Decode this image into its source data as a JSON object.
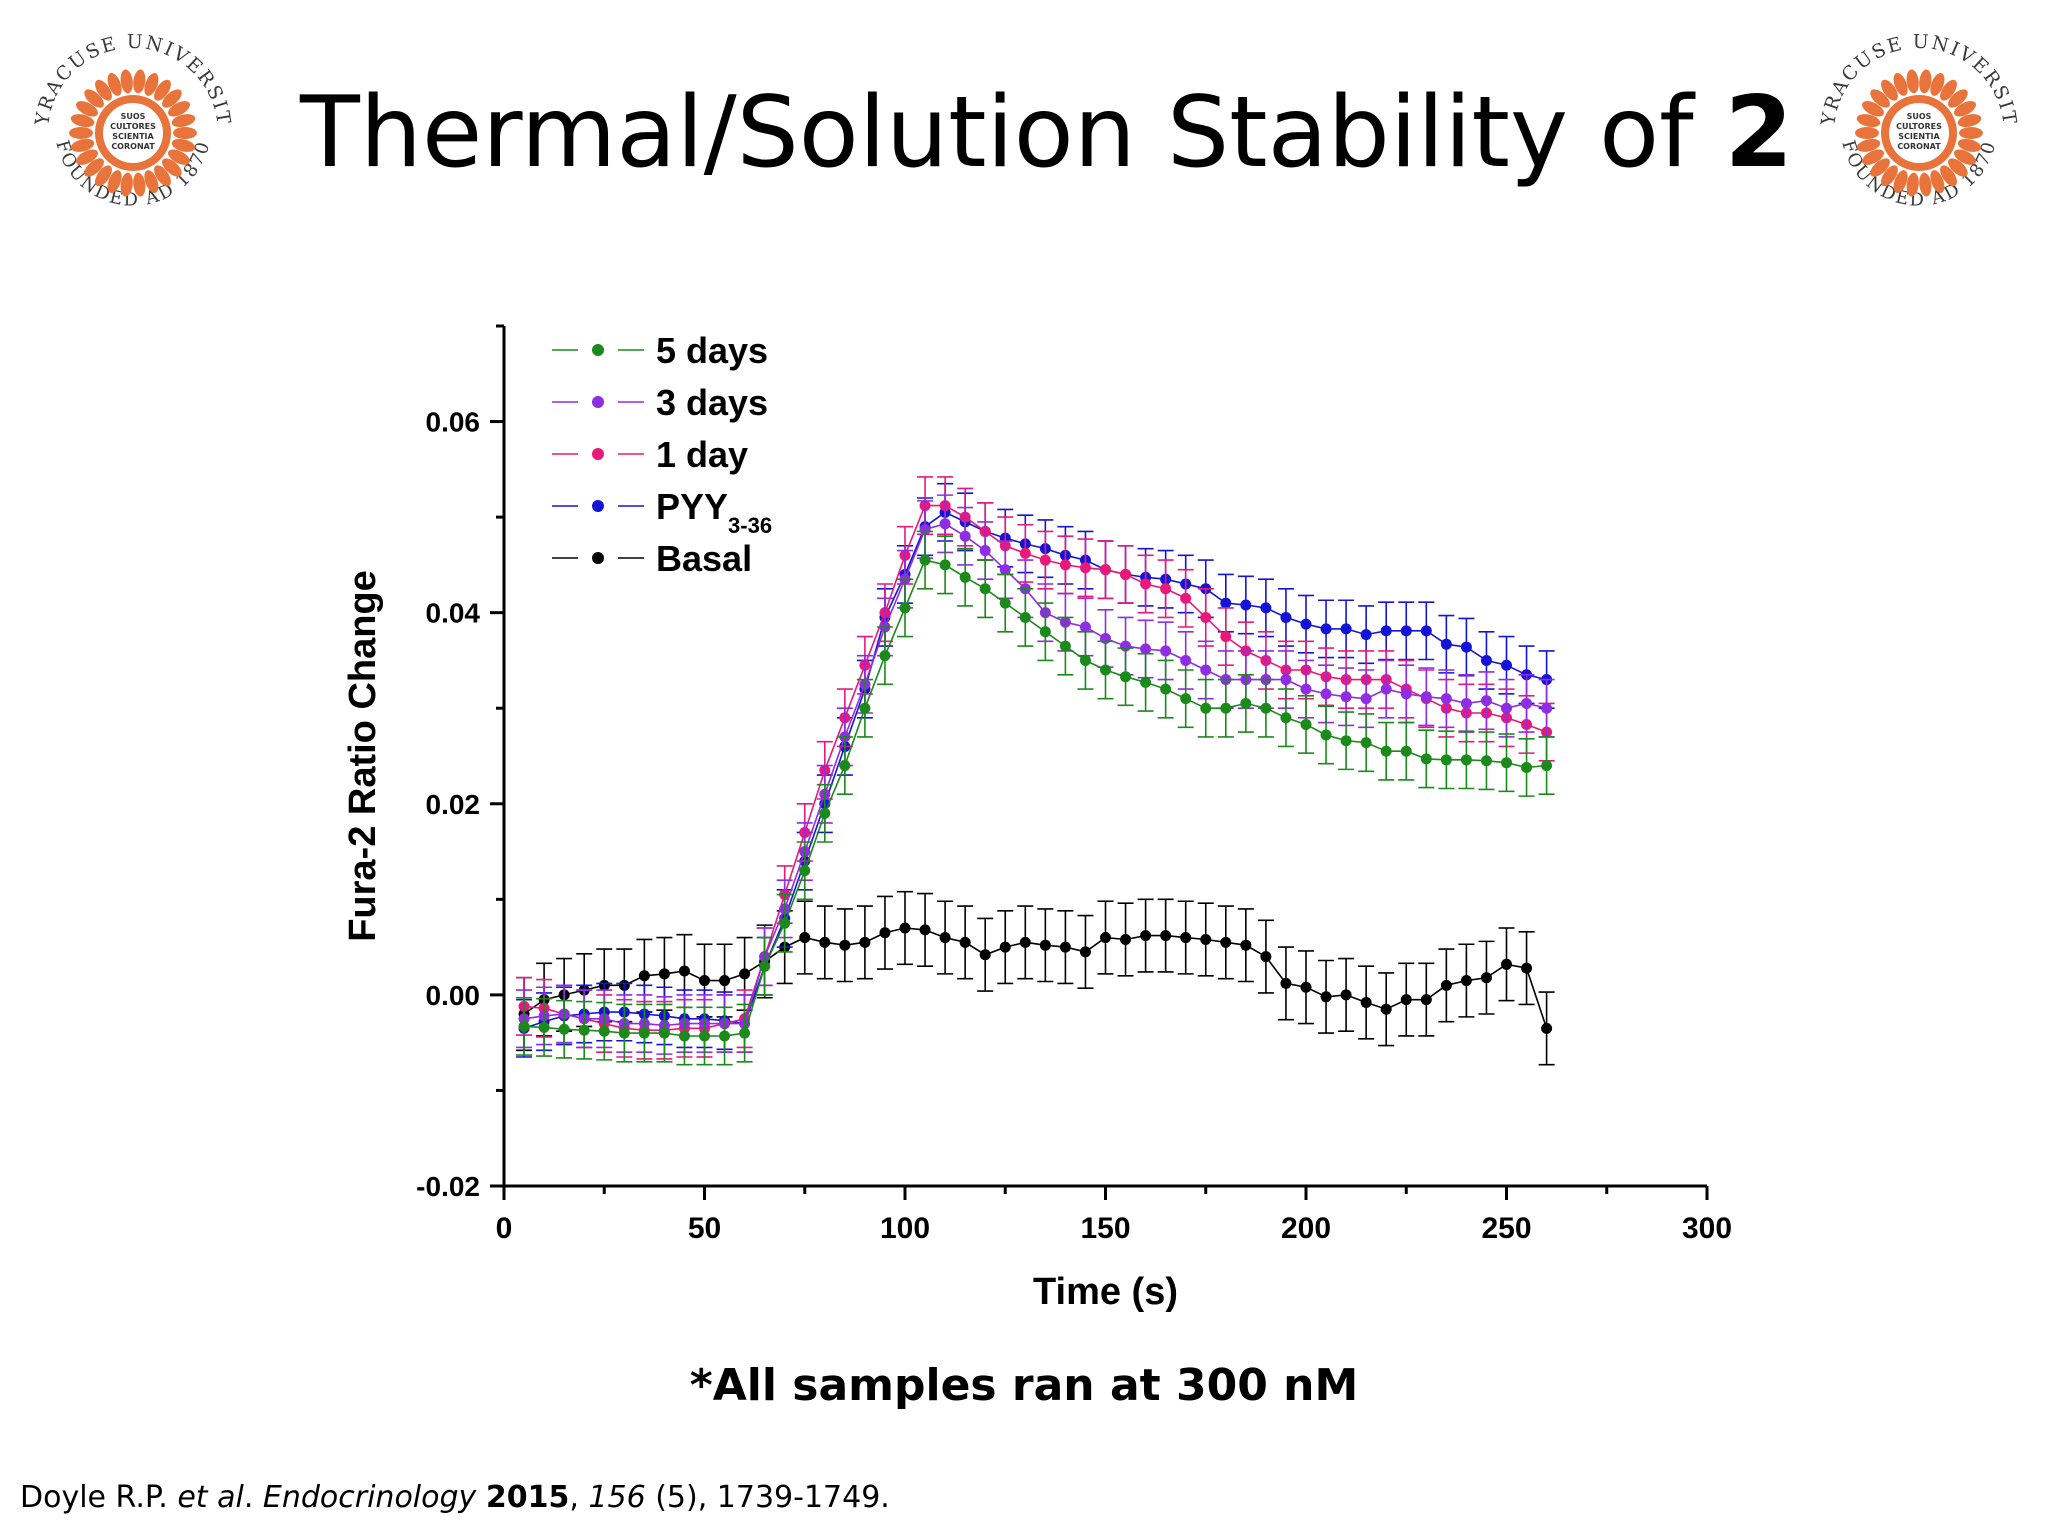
{
  "slide": {
    "title_text": "Thermal/Solution Stability of ",
    "title_bold": "2",
    "seal": {
      "top_text": "SYRACUSE UNIVERSITY",
      "bottom_text": "FOUNDED AD 1870",
      "motto": [
        "SUOS",
        "CULTORES",
        "SCIENTIA",
        "CORONAT"
      ],
      "color": "#e8743b"
    },
    "note": "*All samples ran at 300 nM",
    "citation": {
      "author": "Doyle R.P. ",
      "etal": "et al",
      "dot": ". ",
      "journal": "Endocrinology",
      "year": "2015",
      "sep": ", ",
      "volume": "156",
      "rest": " (5), 1739-1749."
    }
  },
  "chart_data": {
    "type": "line",
    "xlabel": "Time (s)",
    "ylabel": "Fura-2 Ratio Change",
    "xlim": [
      0,
      300
    ],
    "ylim": [
      -0.02,
      0.07
    ],
    "xticks": [
      0,
      50,
      100,
      150,
      200,
      250,
      300
    ],
    "yticks": [
      -0.02,
      0.0,
      0.02,
      0.04,
      0.06
    ],
    "x": [
      5,
      10,
      15,
      20,
      25,
      30,
      35,
      40,
      45,
      50,
      55,
      60,
      65,
      70,
      75,
      80,
      85,
      90,
      95,
      100,
      105,
      110,
      115,
      120,
      125,
      130,
      135,
      140,
      145,
      150,
      155,
      160,
      165,
      170,
      175,
      180,
      185,
      190,
      195,
      200,
      205,
      210,
      215,
      220,
      225,
      230,
      235,
      240,
      245,
      250,
      255,
      260
    ],
    "series": [
      {
        "name": "5 days",
        "color": "#1b8a1b",
        "values": [
          -0.0033,
          -0.0034,
          -0.0036,
          -0.0037,
          -0.0038,
          -0.004,
          -0.004,
          -0.004,
          -0.0043,
          -0.0043,
          -0.0043,
          -0.004,
          0.003,
          0.0075,
          0.013,
          0.019,
          0.024,
          0.03,
          0.0355,
          0.0405,
          0.0455,
          0.045,
          0.0437,
          0.0425,
          0.041,
          0.0395,
          0.038,
          0.0365,
          0.035,
          0.034,
          0.0333,
          0.0327,
          0.032,
          0.031,
          0.03,
          0.03,
          0.0305,
          0.03,
          0.029,
          0.0283,
          0.0272,
          0.0266,
          0.0264,
          0.0255,
          0.0255,
          0.0247,
          0.0246,
          0.0246,
          0.0245,
          0.0243,
          0.0238,
          0.024
        ],
        "err": 0.003
      },
      {
        "name": "3 days",
        "color": "#8e2de2",
        "values": [
          -0.0025,
          -0.0022,
          -0.002,
          -0.0025,
          -0.0025,
          -0.003,
          -0.003,
          -0.0032,
          -0.003,
          -0.003,
          -0.003,
          -0.003,
          0.004,
          0.009,
          0.015,
          0.021,
          0.027,
          0.0325,
          0.0385,
          0.0435,
          0.0487,
          0.0493,
          0.048,
          0.0465,
          0.0445,
          0.0425,
          0.04,
          0.039,
          0.0385,
          0.0373,
          0.0365,
          0.0362,
          0.036,
          0.035,
          0.034,
          0.033,
          0.033,
          0.033,
          0.033,
          0.032,
          0.0315,
          0.0312,
          0.031,
          0.032,
          0.0315,
          0.0312,
          0.031,
          0.0305,
          0.0308,
          0.03,
          0.0305,
          0.03
        ],
        "err": 0.003
      },
      {
        "name": "1 day",
        "color": "#e8197a",
        "values": [
          -0.0012,
          -0.0014,
          -0.002,
          -0.0025,
          -0.003,
          -0.0035,
          -0.0037,
          -0.0037,
          -0.0035,
          -0.0035,
          -0.003,
          -0.0025,
          0.004,
          0.0105,
          0.017,
          0.0235,
          0.029,
          0.0345,
          0.04,
          0.046,
          0.0512,
          0.0512,
          0.05,
          0.0485,
          0.047,
          0.0462,
          0.0455,
          0.045,
          0.0447,
          0.0445,
          0.044,
          0.043,
          0.0425,
          0.0415,
          0.0395,
          0.0375,
          0.036,
          0.035,
          0.034,
          0.034,
          0.0333,
          0.033,
          0.033,
          0.033,
          0.032,
          0.031,
          0.03,
          0.0295,
          0.0295,
          0.029,
          0.0283,
          0.0275
        ],
        "err": 0.003
      },
      {
        "name": "PYY3-36",
        "color": "#1414d6",
        "values": [
          -0.0035,
          -0.0028,
          -0.0022,
          -0.002,
          -0.0018,
          -0.0018,
          -0.002,
          -0.0022,
          -0.0025,
          -0.0025,
          -0.0027,
          -0.003,
          0.003,
          0.008,
          0.014,
          0.02,
          0.026,
          0.032,
          0.0395,
          0.044,
          0.049,
          0.0505,
          0.0495,
          0.0485,
          0.0478,
          0.0472,
          0.0467,
          0.046,
          0.0455,
          0.0445,
          0.044,
          0.0437,
          0.0435,
          0.043,
          0.0425,
          0.041,
          0.0408,
          0.0405,
          0.0395,
          0.0388,
          0.0383,
          0.0383,
          0.0377,
          0.0381,
          0.0381,
          0.0381,
          0.0367,
          0.0364,
          0.035,
          0.0345,
          0.0335,
          0.033
        ],
        "err": 0.003
      },
      {
        "name": "Basal",
        "color": "#000000",
        "values": [
          -0.002,
          -0.0005,
          0.0,
          0.0005,
          0.001,
          0.001,
          0.002,
          0.0022,
          0.0025,
          0.0015,
          0.0015,
          0.0022,
          0.0035,
          0.005,
          0.006,
          0.0055,
          0.0052,
          0.0055,
          0.0065,
          0.007,
          0.0068,
          0.006,
          0.0055,
          0.0042,
          0.005,
          0.0055,
          0.0052,
          0.005,
          0.0045,
          0.006,
          0.0058,
          0.0062,
          0.0062,
          0.006,
          0.0058,
          0.0055,
          0.0052,
          0.004,
          0.0012,
          0.0008,
          -0.0002,
          0.0,
          -0.0008,
          -0.0015,
          -0.0005,
          -0.0005,
          0.001,
          0.0015,
          0.0018,
          0.0032,
          0.0028,
          -0.0035
        ],
        "err": 0.0038
      }
    ],
    "legend": {
      "position": "top-left",
      "entries": [
        {
          "label": "5 days",
          "sub": ""
        },
        {
          "label": "3 days",
          "sub": ""
        },
        {
          "label": "1 day",
          "sub": ""
        },
        {
          "label": "PYY",
          "sub": "3-36"
        },
        {
          "label": "Basal",
          "sub": ""
        }
      ]
    },
    "grid": false
  }
}
